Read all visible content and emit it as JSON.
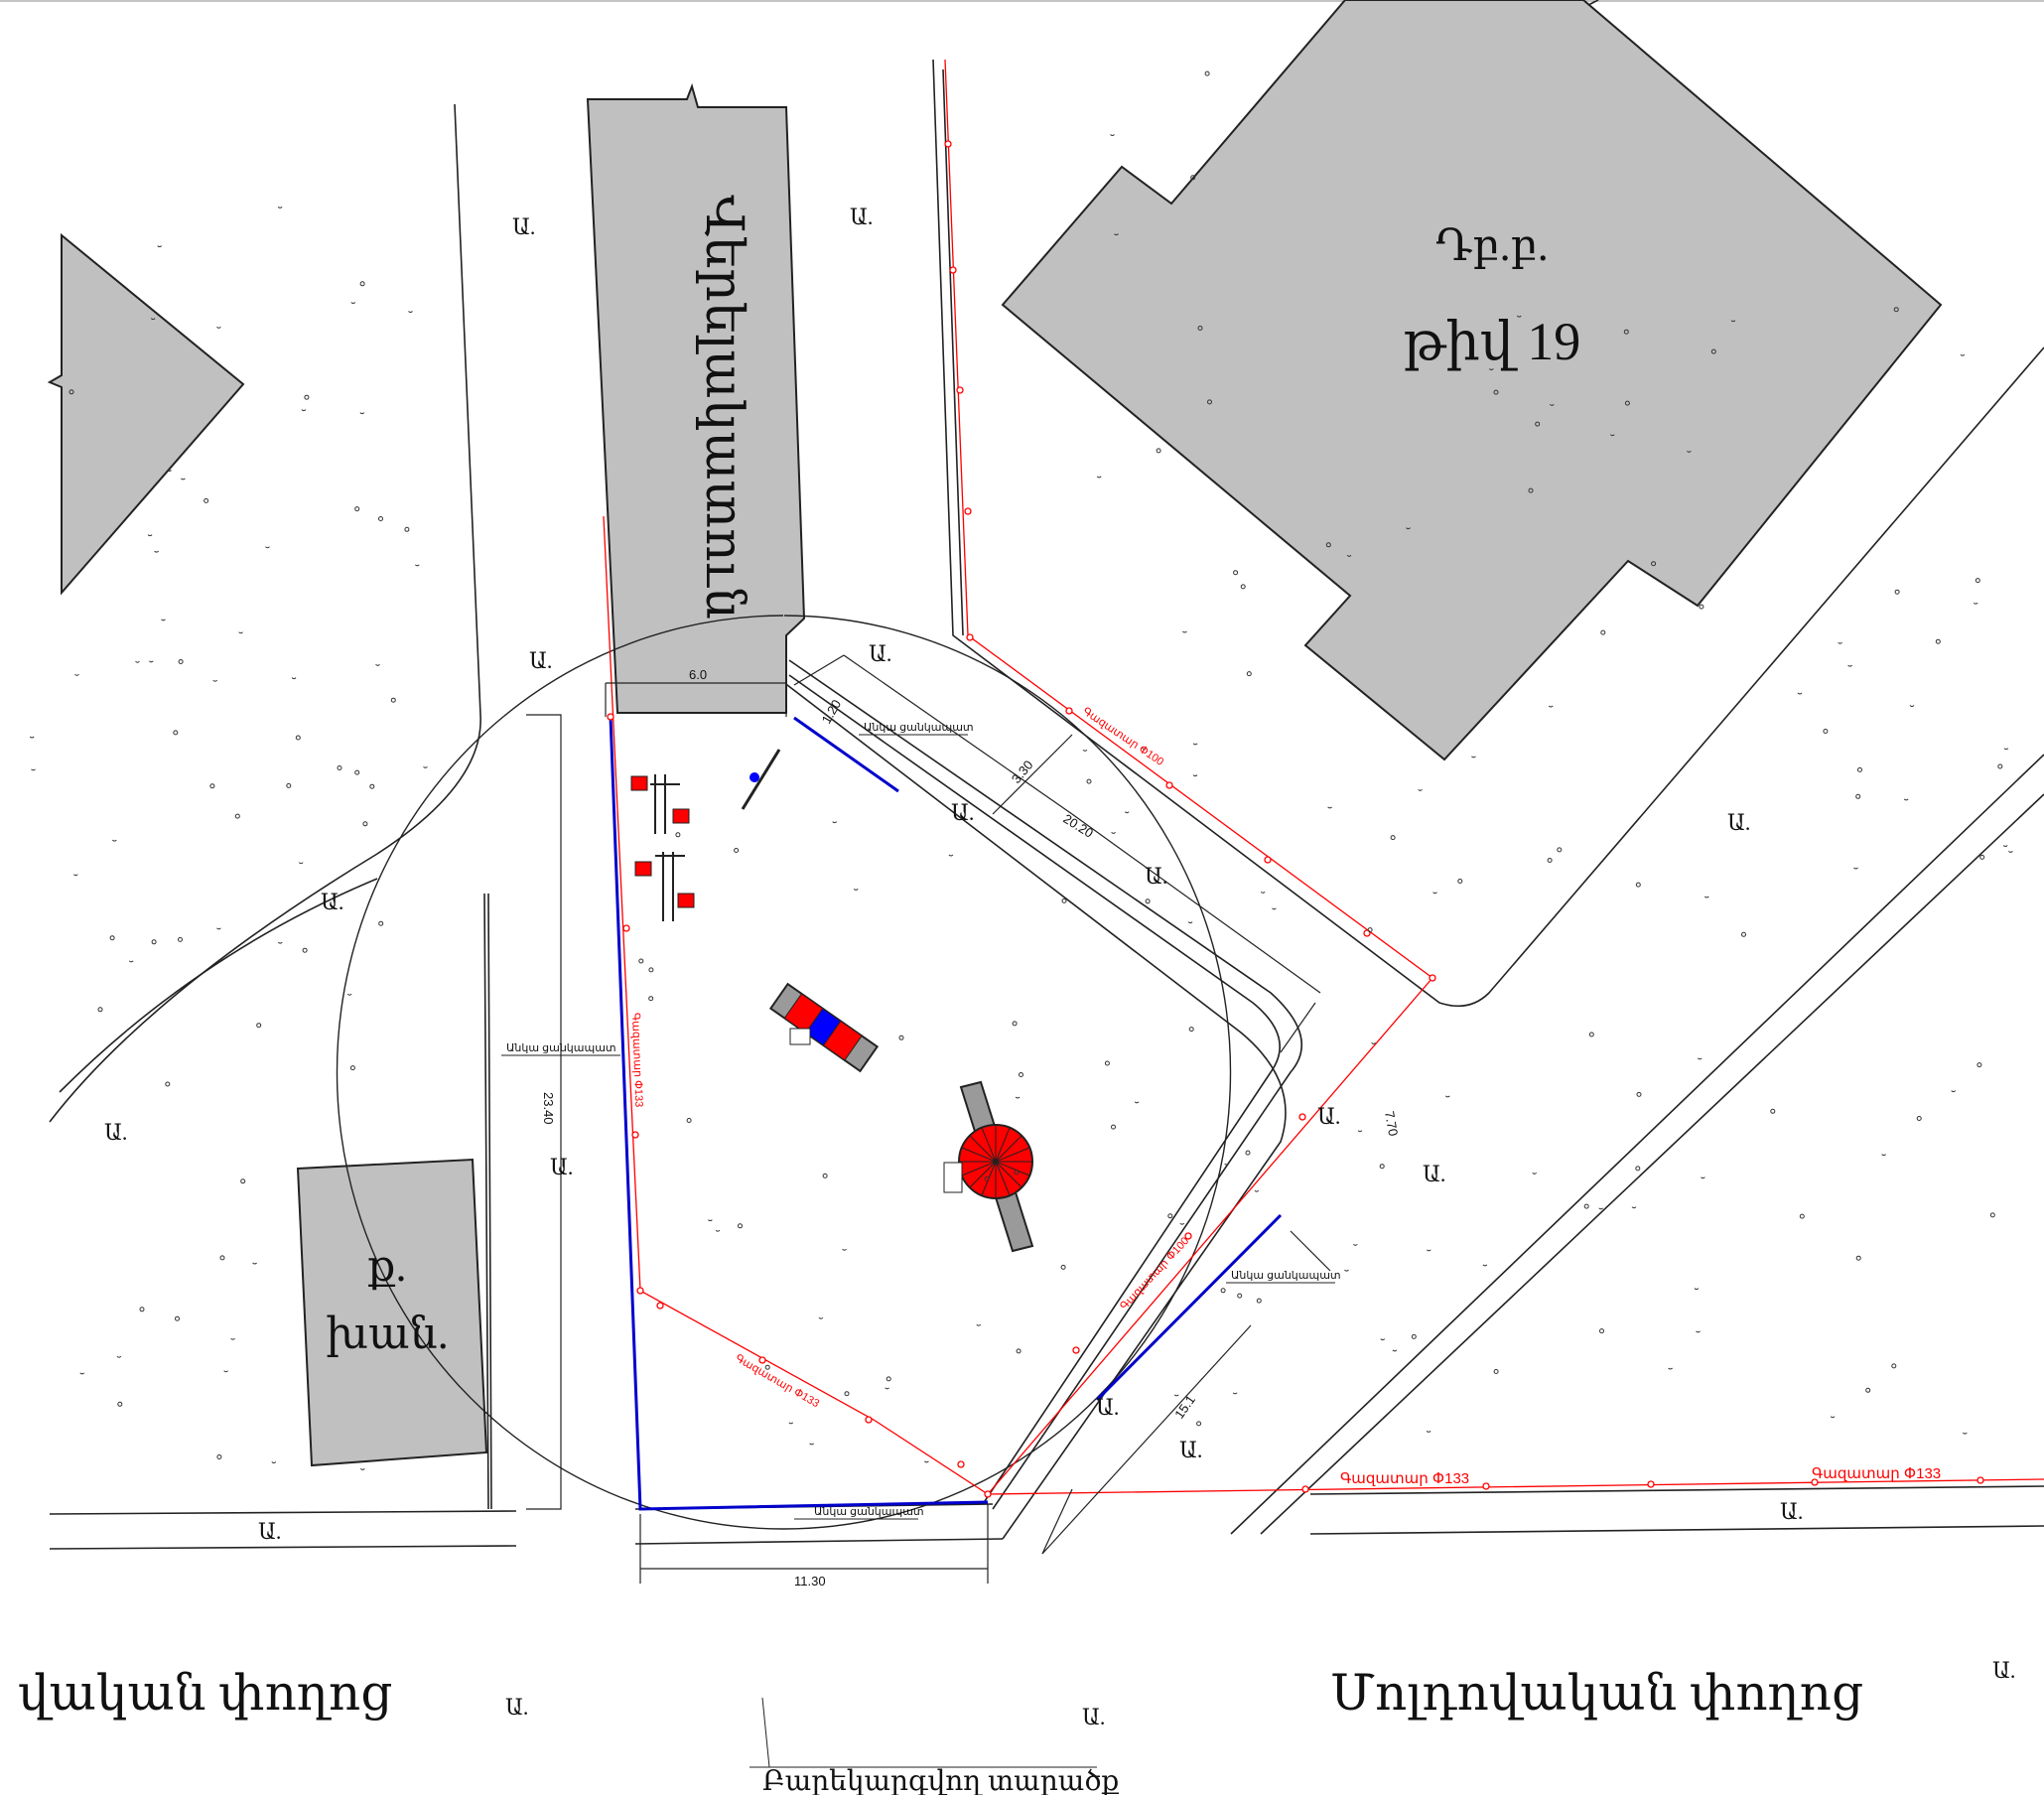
{
  "buildings": {
    "school_line1": "Դբ.բ.",
    "school_line2": "թիվ 19",
    "elevator": "Վերելակատուն",
    "garage_line1": "ք.",
    "garage_line2": "խան."
  },
  "streets": {
    "left": "վական փողոց",
    "right": "Մոլդովական փողոց"
  },
  "area_label": "Բարեկարգվող տարածք",
  "green_mark": "Ա.",
  "utilities": {
    "pipe_133": "Գազատար Փ133",
    "pipe_100": "Գազատար Փ100",
    "curb": "Անկա ցանկապատ"
  },
  "dimensions": {
    "d_6_0": "6.0",
    "d_1_20": "1.20",
    "d_3_30": "3.30",
    "d_20_20": "20.20",
    "d_7_70": "7.70",
    "d_15_1": "15.1",
    "d_23_40": "23.40",
    "d_11_30": "11.30"
  },
  "colors": {
    "building": "#c0c0c0",
    "gas_line": "#ff0000",
    "fence": "#0000cc",
    "equipment_red": "#ff0000",
    "equipment_blue": "#0000ff",
    "equipment_gray": "#9a9a9a"
  }
}
